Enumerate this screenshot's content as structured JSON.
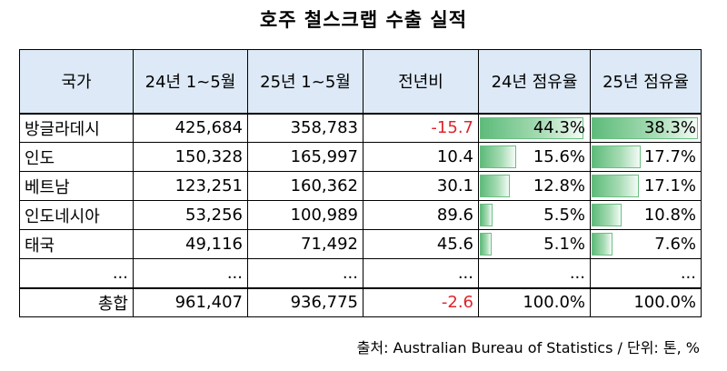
{
  "title": "호주 철스크랩 수출 실적",
  "headers": [
    "국가",
    "24년 1~5월",
    "25년 1~5월",
    "전년비",
    "24년 점유율",
    "25년 점유율"
  ],
  "rows": [
    {
      "country": "방글라데시",
      "y24": "425,684",
      "y25": "358,783",
      "yoy": "-15.7",
      "share24": "44.3%",
      "share25": "38.3%",
      "share24_value": 44.3,
      "share25_value": 38.3,
      "yoy_negative": true
    },
    {
      "country": "인도",
      "y24": "150,328",
      "y25": "165,997",
      "yoy": "10.4",
      "share24": "15.6%",
      "share25": "17.7%",
      "share24_value": 15.6,
      "share25_value": 17.7,
      "yoy_negative": false
    },
    {
      "country": "베트남",
      "y24": "123,251",
      "y25": "160,362",
      "yoy": "30.1",
      "share24": "12.8%",
      "share25": "17.1%",
      "share24_value": 12.8,
      "share25_value": 17.1,
      "yoy_negative": false
    },
    {
      "country": "인도네시아",
      "y24": "53,256",
      "y25": "100,989",
      "yoy": "89.6",
      "share24": "5.5%",
      "share25": "10.8%",
      "share24_value": 5.5,
      "share25_value": 10.8,
      "yoy_negative": false
    },
    {
      "country": "태국",
      "y24": "49,116",
      "y25": "71,492",
      "yoy": "45.6",
      "share24": "5.1%",
      "share25": "7.6%",
      "share24_value": 5.1,
      "share25_value": 7.6,
      "yoy_negative": false
    }
  ],
  "ellipsis_row": [
    "...",
    "...",
    "...",
    "...",
    "...",
    "..."
  ],
  "total": {
    "label": "총합",
    "y24": "961,407",
    "y25": "936,775",
    "yoy": "-2.6",
    "share24": "100.0%",
    "share25": "100.0%"
  },
  "source": "출처: Australian Bureau of Statistics / 단위: 톤, %",
  "colors": {
    "header_bg": "#dde9f6",
    "negative": "#e0242b",
    "bar": "#5dbb7a"
  }
}
